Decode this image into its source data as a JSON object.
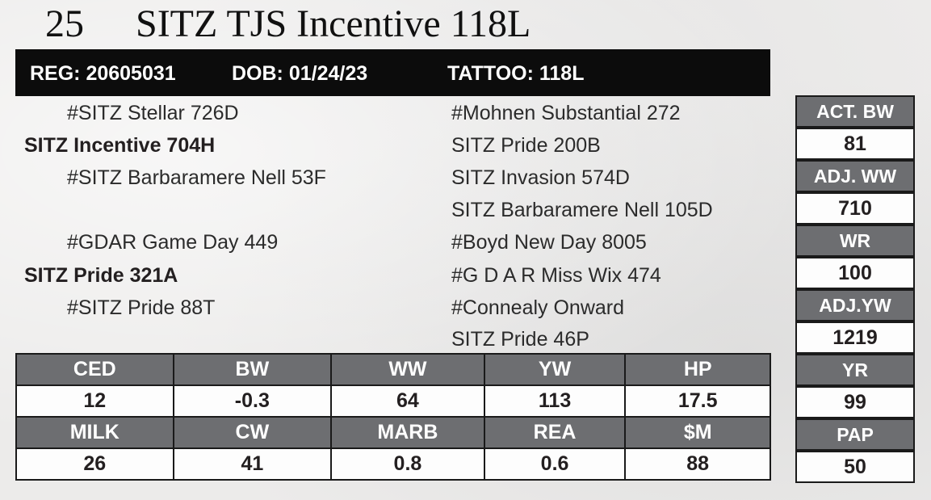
{
  "header": {
    "lot_number": "25",
    "animal_name": "SITZ TJS Incentive 118L"
  },
  "reg_bar": {
    "reg": "REG: 20605031",
    "dob": "DOB: 01/24/23",
    "tattoo": "TATTOO: 118L"
  },
  "pedigree": {
    "sire_sire": "#SITZ Stellar 726D",
    "sire": "SITZ Incentive 704H",
    "sire_dam": "#SITZ Barbaramere Nell 53F",
    "dam_sire": "#GDAR Game Day 449",
    "dam": "SITZ Pride 321A",
    "dam_dam": "#SITZ Pride 88T",
    "col2": [
      "#Mohnen Substantial 272",
      "SITZ Pride 200B",
      "SITZ Invasion 574D",
      "SITZ Barbaramere Nell 105D",
      "#Boyd New Day 8005",
      "#G D A R Miss Wix 474",
      "#Connealy Onward",
      "SITZ Pride 46P"
    ]
  },
  "side_stats": [
    {
      "label": "ACT. BW",
      "value": "81"
    },
    {
      "label": "ADJ. WW",
      "value": "710"
    },
    {
      "label": "WR",
      "value": "100"
    },
    {
      "label": "ADJ.YW",
      "value": "1219"
    },
    {
      "label": "YR",
      "value": "99"
    },
    {
      "label": "PAP",
      "value": "50"
    }
  ],
  "epds": {
    "row1": [
      {
        "label": "CED",
        "value": "12"
      },
      {
        "label": "BW",
        "value": "-0.3"
      },
      {
        "label": "WW",
        "value": "64"
      },
      {
        "label": "YW",
        "value": "113"
      },
      {
        "label": "HP",
        "value": "17.5"
      }
    ],
    "row2": [
      {
        "label": "MILK",
        "value": "26"
      },
      {
        "label": "CW",
        "value": "41"
      },
      {
        "label": "MARB",
        "value": "0.8"
      },
      {
        "label": "REA",
        "value": "0.6"
      },
      {
        "label": "$M",
        "value": "88"
      }
    ]
  }
}
